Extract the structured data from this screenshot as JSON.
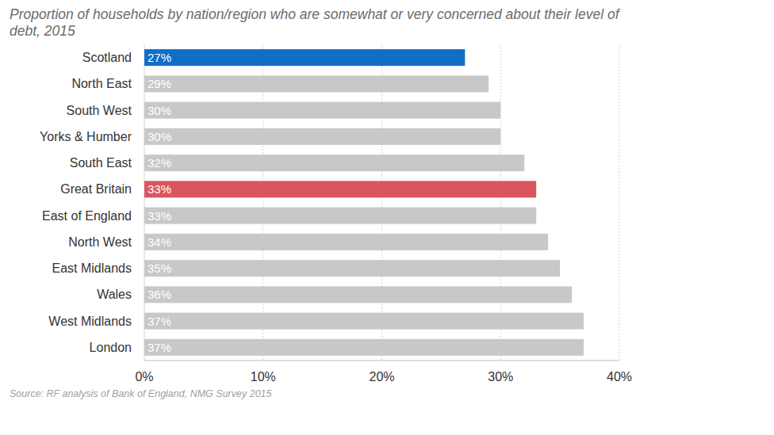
{
  "chart_data": {
    "type": "bar",
    "orientation": "horizontal",
    "title": "Proportion of households by nation/region who are somewhat or very concerned about their level of debt, 2015",
    "source": "Source: RF analysis of Bank of England, NMG Survey 2015",
    "categories": [
      "Scotland",
      "North East",
      "South West",
      "Yorks & Humber",
      "South East",
      "Great Britain",
      "East of England",
      "North West",
      "East Midlands",
      "Wales",
      "West Midlands",
      "London"
    ],
    "values": [
      27,
      29,
      30,
      30,
      32,
      33,
      33,
      34,
      35,
      36,
      37,
      37
    ],
    "value_labels": [
      "27%",
      "29%",
      "30%",
      "30%",
      "32%",
      "33%",
      "33%",
      "34%",
      "35%",
      "36%",
      "37%",
      "37%"
    ],
    "colors": [
      "#0f6fc6",
      "#c8c8c8",
      "#c8c8c8",
      "#c8c8c8",
      "#c8c8c8",
      "#d9565f",
      "#c8c8c8",
      "#c8c8c8",
      "#c8c8c8",
      "#c8c8c8",
      "#c8c8c8",
      "#c8c8c8"
    ],
    "xlim": [
      0,
      40
    ],
    "xticks": [
      {
        "value": 0,
        "label": "0%"
      },
      {
        "value": 10,
        "label": "10%"
      },
      {
        "value": 20,
        "label": "20%"
      },
      {
        "value": 30,
        "label": "30%"
      },
      {
        "value": 40,
        "label": "40%"
      }
    ],
    "grid": true,
    "data_labels": true
  }
}
